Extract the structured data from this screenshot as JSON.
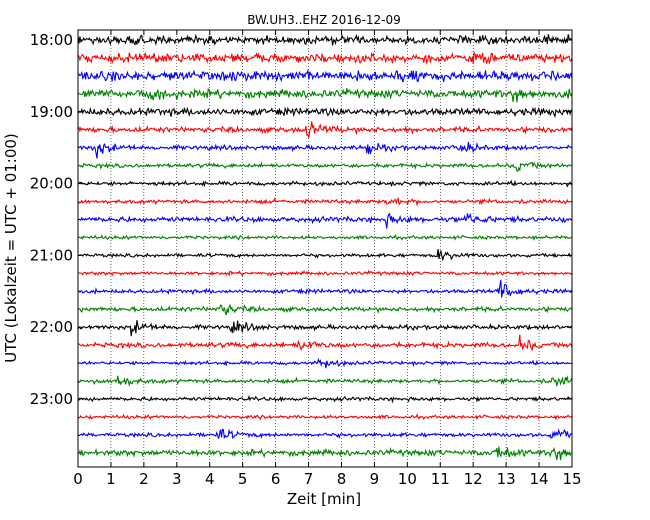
{
  "chart_data": {
    "type": "line",
    "chart_kind": "seismogram dayplot",
    "title": "BW.UH3..EHZ 2016-12-09",
    "xlabel": "Zeit  [min]",
    "ylabel": "UTC (Lokalzeit = UTC + 01:00)",
    "xlim": [
      0,
      15
    ],
    "x_ticks": [
      0,
      1,
      2,
      3,
      4,
      5,
      6,
      7,
      8,
      9,
      10,
      11,
      12,
      13,
      14,
      15
    ],
    "y_tick_labels": [
      "18:00",
      "19:00",
      "20:00",
      "21:00",
      "22:00",
      "23:00"
    ],
    "grid": "vertical dotted lines at each minute",
    "trace_colors": [
      "#000000",
      "#ff0000",
      "#0000ff",
      "#008000"
    ],
    "trace_starts": [
      "18:00",
      "18:15",
      "18:30",
      "18:45",
      "19:00",
      "19:15",
      "19:30",
      "19:45",
      "20:00",
      "20:15",
      "20:30",
      "20:45",
      "21:00",
      "21:15",
      "21:30",
      "21:45",
      "22:00",
      "22:15",
      "22:30",
      "22:45",
      "23:00",
      "23:15",
      "23:30",
      "23:45"
    ],
    "trace_noise_level": [
      0.9,
      0.95,
      1.0,
      0.85,
      0.75,
      0.55,
      0.45,
      0.4,
      0.4,
      0.4,
      0.55,
      0.35,
      0.35,
      0.35,
      0.4,
      0.45,
      0.45,
      0.5,
      0.35,
      0.4,
      0.4,
      0.35,
      0.4,
      0.6
    ],
    "events": [
      {
        "trace": 1,
        "minute": 12.0,
        "amplitude": 1.0
      },
      {
        "trace": 2,
        "minute": 9.7,
        "amplitude": 0.8
      },
      {
        "trace": 3,
        "minute": 2.2,
        "amplitude": 0.6
      },
      {
        "trace": 3,
        "minute": 13.2,
        "amplitude": 0.8
      },
      {
        "trace": 5,
        "minute": 6.9,
        "amplitude": 1.4
      },
      {
        "trace": 6,
        "minute": 0.5,
        "amplitude": 1.2
      },
      {
        "trace": 6,
        "minute": 8.7,
        "amplitude": 0.9
      },
      {
        "trace": 6,
        "minute": 11.6,
        "amplitude": 0.8
      },
      {
        "trace": 7,
        "minute": 13.3,
        "amplitude": 0.9
      },
      {
        "trace": 9,
        "minute": 9.4,
        "amplitude": 0.8
      },
      {
        "trace": 10,
        "minute": 9.3,
        "amplitude": 0.8
      },
      {
        "trace": 10,
        "minute": 11.8,
        "amplitude": 0.8
      },
      {
        "trace": 12,
        "minute": 10.9,
        "amplitude": 0.9
      },
      {
        "trace": 14,
        "minute": 12.8,
        "amplitude": 1.6
      },
      {
        "trace": 15,
        "minute": 4.3,
        "amplitude": 1.0
      },
      {
        "trace": 16,
        "minute": 1.6,
        "amplitude": 1.0
      },
      {
        "trace": 16,
        "minute": 4.7,
        "amplitude": 0.8
      },
      {
        "trace": 17,
        "minute": 6.7,
        "amplitude": 0.9
      },
      {
        "trace": 17,
        "minute": 13.4,
        "amplitude": 0.9
      },
      {
        "trace": 18,
        "minute": 7.3,
        "amplitude": 0.9
      },
      {
        "trace": 19,
        "minute": 1.2,
        "amplitude": 0.9
      },
      {
        "trace": 19,
        "minute": 14.4,
        "amplitude": 0.9
      },
      {
        "trace": 22,
        "minute": 4.2,
        "amplitude": 0.9
      },
      {
        "trace": 22,
        "minute": 14.4,
        "amplitude": 0.9
      },
      {
        "trace": 23,
        "minute": 12.7,
        "amplitude": 1.0
      },
      {
        "trace": 23,
        "minute": 14.4,
        "amplitude": 1.1
      }
    ]
  }
}
